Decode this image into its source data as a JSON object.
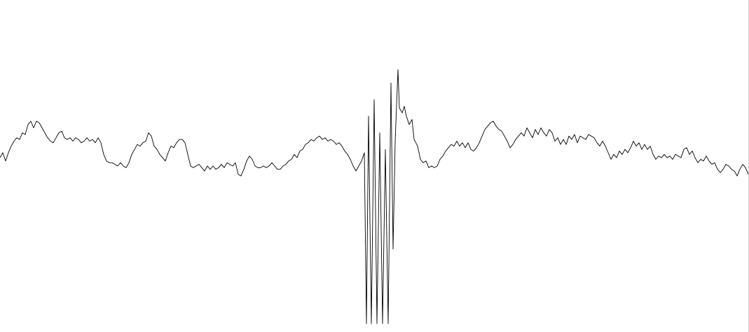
{
  "chart_data": {
    "type": "line",
    "title": "",
    "xlabel": "",
    "ylabel": "",
    "grid": false,
    "legend": "none",
    "xlim": [
      0,
      1069
    ],
    "ylim": [
      -1.0,
      1.0
    ],
    "series": [
      {
        "color": "#000000",
        "points": [
          [
            0,
            0.05
          ],
          [
            4,
            0.08
          ],
          [
            8,
            0.03
          ],
          [
            12,
            0.08
          ],
          [
            16,
            0.12
          ],
          [
            20,
            0.15
          ],
          [
            24,
            0.17
          ],
          [
            28,
            0.16
          ],
          [
            32,
            0.2
          ],
          [
            36,
            0.19
          ],
          [
            40,
            0.25
          ],
          [
            44,
            0.27
          ],
          [
            48,
            0.23
          ],
          [
            52,
            0.27
          ],
          [
            56,
            0.26
          ],
          [
            60,
            0.23
          ],
          [
            64,
            0.2
          ],
          [
            68,
            0.17
          ],
          [
            72,
            0.15
          ],
          [
            76,
            0.14
          ],
          [
            80,
            0.17
          ],
          [
            84,
            0.2
          ],
          [
            88,
            0.21
          ],
          [
            92,
            0.17
          ],
          [
            96,
            0.16
          ],
          [
            100,
            0.17
          ],
          [
            104,
            0.15
          ],
          [
            108,
            0.17
          ],
          [
            112,
            0.16
          ],
          [
            116,
            0.14
          ],
          [
            120,
            0.15
          ],
          [
            124,
            0.17
          ],
          [
            128,
            0.15
          ],
          [
            132,
            0.16
          ],
          [
            136,
            0.14
          ],
          [
            140,
            0.17
          ],
          [
            144,
            0.14
          ],
          [
            148,
            0.07
          ],
          [
            152,
            0.03
          ],
          [
            156,
            0.02
          ],
          [
            160,
            0.02
          ],
          [
            164,
            0.01
          ],
          [
            168,
            0.0
          ],
          [
            172,
            0.02
          ],
          [
            176,
            0.0
          ],
          [
            180,
            -0.01
          ],
          [
            184,
            0.02
          ],
          [
            188,
            0.07
          ],
          [
            192,
            0.1
          ],
          [
            196,
            0.13
          ],
          [
            200,
            0.12
          ],
          [
            204,
            0.14
          ],
          [
            208,
            0.15
          ],
          [
            212,
            0.2
          ],
          [
            216,
            0.18
          ],
          [
            220,
            0.12
          ],
          [
            224,
            0.1
          ],
          [
            228,
            0.07
          ],
          [
            232,
            0.05
          ],
          [
            236,
            0.03
          ],
          [
            240,
            0.08
          ],
          [
            244,
            0.12
          ],
          [
            248,
            0.11
          ],
          [
            252,
            0.14
          ],
          [
            256,
            0.16
          ],
          [
            260,
            0.16
          ],
          [
            264,
            0.14
          ],
          [
            268,
            0.07
          ],
          [
            272,
            0.0
          ],
          [
            276,
            -0.01
          ],
          [
            280,
            0.0
          ],
          [
            284,
            0.01
          ],
          [
            288,
            -0.01
          ],
          [
            292,
            -0.03
          ],
          [
            296,
            0.0
          ],
          [
            300,
            -0.02
          ],
          [
            304,
            0.0
          ],
          [
            308,
            -0.02
          ],
          [
            312,
            -0.01
          ],
          [
            316,
            0.01
          ],
          [
            320,
            -0.01
          ],
          [
            324,
            0.02
          ],
          [
            328,
            0.01
          ],
          [
            332,
            0.0
          ],
          [
            336,
            0.02
          ],
          [
            340,
            -0.05
          ],
          [
            344,
            -0.06
          ],
          [
            348,
            -0.02
          ],
          [
            352,
            0.03
          ],
          [
            356,
            0.06
          ],
          [
            360,
            0.04
          ],
          [
            364,
            0.0
          ],
          [
            368,
            -0.01
          ],
          [
            372,
            -0.01
          ],
          [
            376,
            0.0
          ],
          [
            380,
            -0.01
          ],
          [
            384,
            0.0
          ],
          [
            388,
            0.02
          ],
          [
            392,
            0.0
          ],
          [
            396,
            -0.02
          ],
          [
            400,
            -0.02
          ],
          [
            404,
            0.0
          ],
          [
            408,
            0.01
          ],
          [
            412,
            0.03
          ],
          [
            416,
            0.04
          ],
          [
            420,
            0.07
          ],
          [
            424,
            0.05
          ],
          [
            428,
            0.09
          ],
          [
            432,
            0.1
          ],
          [
            436,
            0.13
          ],
          [
            440,
            0.14
          ],
          [
            444,
            0.16
          ],
          [
            448,
            0.15
          ],
          [
            452,
            0.17
          ],
          [
            456,
            0.18
          ],
          [
            460,
            0.16
          ],
          [
            464,
            0.17
          ],
          [
            468,
            0.15
          ],
          [
            472,
            0.16
          ],
          [
            476,
            0.15
          ],
          [
            480,
            0.13
          ],
          [
            484,
            0.14
          ],
          [
            488,
            0.12
          ],
          [
            492,
            0.09
          ],
          [
            496,
            0.07
          ],
          [
            500,
            0.04
          ],
          [
            504,
            0.0
          ],
          [
            508,
            -0.03
          ],
          [
            512,
            0.0
          ],
          [
            516,
            0.03
          ],
          [
            520,
            0.08
          ],
          [
            523,
            -0.95
          ],
          [
            526,
            0.3
          ],
          [
            530,
            -0.95
          ],
          [
            534,
            0.4
          ],
          [
            538,
            -0.95
          ],
          [
            542,
            0.2
          ],
          [
            546,
            -0.95
          ],
          [
            550,
            0.1
          ],
          [
            554,
            -0.95
          ],
          [
            558,
            0.5
          ],
          [
            561,
            -0.5
          ],
          [
            564,
            0.15
          ],
          [
            568,
            0.58
          ],
          [
            570,
            0.35
          ],
          [
            574,
            0.32
          ],
          [
            577,
            0.36
          ],
          [
            580,
            0.3
          ],
          [
            584,
            0.25
          ],
          [
            588,
            0.28
          ],
          [
            591,
            0.16
          ],
          [
            596,
            0.12
          ],
          [
            600,
            0.04
          ],
          [
            604,
            0.02
          ],
          [
            608,
            0.03
          ],
          [
            612,
            -0.01
          ],
          [
            616,
            0.0
          ],
          [
            620,
            -0.01
          ],
          [
            624,
            0.0
          ],
          [
            628,
            0.04
          ],
          [
            632,
            0.06
          ],
          [
            636,
            0.09
          ],
          [
            640,
            0.11
          ],
          [
            644,
            0.13
          ],
          [
            648,
            0.12
          ],
          [
            652,
            0.15
          ],
          [
            656,
            0.12
          ],
          [
            660,
            0.14
          ],
          [
            664,
            0.11
          ],
          [
            668,
            0.14
          ],
          [
            672,
            0.1
          ],
          [
            676,
            0.09
          ],
          [
            680,
            0.11
          ],
          [
            684,
            0.14
          ],
          [
            688,
            0.18
          ],
          [
            692,
            0.22
          ],
          [
            696,
            0.24
          ],
          [
            700,
            0.26
          ],
          [
            704,
            0.27
          ],
          [
            708,
            0.24
          ],
          [
            712,
            0.22
          ],
          [
            716,
            0.21
          ],
          [
            720,
            0.18
          ],
          [
            724,
            0.15
          ],
          [
            728,
            0.11
          ],
          [
            732,
            0.13
          ],
          [
            736,
            0.16
          ],
          [
            740,
            0.18
          ],
          [
            744,
            0.2
          ],
          [
            748,
            0.18
          ],
          [
            752,
            0.23
          ],
          [
            756,
            0.2
          ],
          [
            760,
            0.17
          ],
          [
            764,
            0.22
          ],
          [
            768,
            0.19
          ],
          [
            772,
            0.23
          ],
          [
            776,
            0.2
          ],
          [
            780,
            0.18
          ],
          [
            784,
            0.22
          ],
          [
            788,
            0.2
          ],
          [
            792,
            0.15
          ],
          [
            796,
            0.17
          ],
          [
            800,
            0.13
          ],
          [
            804,
            0.16
          ],
          [
            808,
            0.13
          ],
          [
            812,
            0.18
          ],
          [
            816,
            0.16
          ],
          [
            820,
            0.19
          ],
          [
            824,
            0.14
          ],
          [
            828,
            0.18
          ],
          [
            832,
            0.17
          ],
          [
            836,
            0.16
          ],
          [
            840,
            0.19
          ],
          [
            844,
            0.18
          ],
          [
            848,
            0.17
          ],
          [
            852,
            0.14
          ],
          [
            856,
            0.12
          ],
          [
            860,
            0.15
          ],
          [
            864,
            0.12
          ],
          [
            868,
            0.08
          ],
          [
            872,
            0.04
          ],
          [
            876,
            0.07
          ],
          [
            880,
            0.05
          ],
          [
            884,
            0.09
          ],
          [
            888,
            0.07
          ],
          [
            892,
            0.1
          ],
          [
            896,
            0.08
          ],
          [
            900,
            0.11
          ],
          [
            904,
            0.15
          ],
          [
            908,
            0.12
          ],
          [
            912,
            0.14
          ],
          [
            916,
            0.1
          ],
          [
            920,
            0.13
          ],
          [
            924,
            0.1
          ],
          [
            928,
            0.12
          ],
          [
            932,
            0.07
          ],
          [
            936,
            0.04
          ],
          [
            940,
            0.06
          ],
          [
            944,
            0.05
          ],
          [
            948,
            0.07
          ],
          [
            952,
            0.05
          ],
          [
            956,
            0.06
          ],
          [
            960,
            0.04
          ],
          [
            964,
            0.07
          ],
          [
            968,
            0.06
          ],
          [
            972,
            0.05
          ],
          [
            976,
            0.1
          ],
          [
            980,
            0.11
          ],
          [
            984,
            0.07
          ],
          [
            988,
            0.09
          ],
          [
            992,
            0.05
          ],
          [
            996,
            0.02
          ],
          [
            1000,
            0.04
          ],
          [
            1004,
            0.03
          ],
          [
            1008,
            0.06
          ],
          [
            1012,
            0.03
          ],
          [
            1016,
            0.01
          ],
          [
            1020,
            0.02
          ],
          [
            1024,
            -0.02
          ],
          [
            1028,
            -0.04
          ],
          [
            1032,
            -0.02
          ],
          [
            1036,
            0.01
          ],
          [
            1040,
            0.0
          ],
          [
            1044,
            -0.02
          ],
          [
            1048,
            -0.03
          ],
          [
            1052,
            -0.06
          ],
          [
            1056,
            -0.02
          ],
          [
            1060,
            0.01
          ],
          [
            1064,
            -0.01
          ],
          [
            1068,
            -0.05
          ]
        ]
      }
    ]
  }
}
